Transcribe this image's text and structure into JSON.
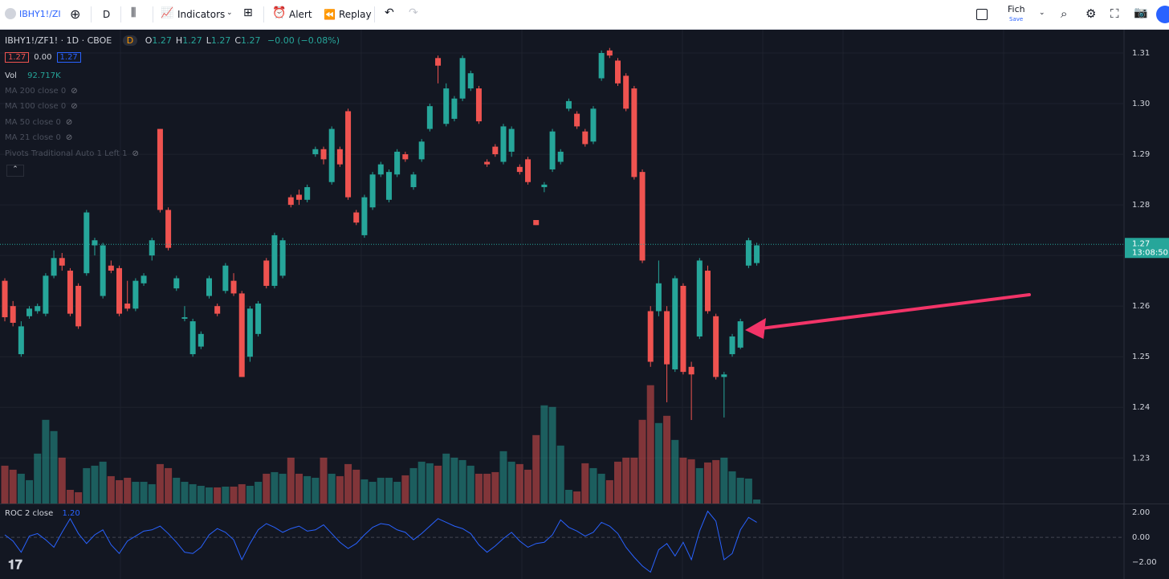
{
  "toolbar": {
    "symbol": "IBHY1!/ZI",
    "interval": "D",
    "indicators": "Indicators",
    "alert": "Alert",
    "replay": "Replay",
    "layout": "Fich",
    "save": "Save"
  },
  "legend": {
    "title": "IBHY1!/ZF1! · 1D · CBOE",
    "badge": "D",
    "ohlc": [
      {
        "label": "O",
        "value": "1.27"
      },
      {
        "label": "H",
        "value": "1.27"
      },
      {
        "label": "L",
        "value": "1.27"
      },
      {
        "label": "C",
        "value": "1.27"
      }
    ],
    "change": "−0.00 (−0.08%)",
    "boxes": [
      "1.27",
      "0.00",
      "1.27"
    ],
    "vol_label": "Vol",
    "vol_value": "92.717K",
    "studies": [
      "MA 200 close 0",
      "MA 100 close 0",
      "MA 50 close 0",
      "MA 21 close 0",
      "Pivots Traditional Auto 1 Left 1"
    ],
    "roc_label": "ROC 2 close",
    "roc_value": "1.20"
  },
  "chart_data": {
    "type": "candlestick",
    "up_color": "#26a69a",
    "down_color": "#ef5350",
    "roc_color": "#2962ff",
    "candles": {
      "open": [
        1.265,
        1.26,
        1.2505,
        1.258,
        1.259,
        1.2585,
        1.266,
        1.2695,
        1.267,
        1.264,
        1.2665,
        1.272,
        1.262,
        1.268,
        1.2675,
        1.2605,
        1.2595,
        1.2645,
        1.27,
        1.295,
        1.279,
        1.2635,
        1.2575,
        1.2505,
        1.252,
        1.262,
        1.26,
        1.263,
        1.265,
        1.2625,
        1.25,
        1.2545,
        1.269,
        1.264,
        1.266,
        1.2815,
        1.282,
        1.281,
        1.29,
        1.291,
        1.2845,
        1.291,
        1.2985,
        1.2785,
        1.274,
        1.2795,
        1.286,
        1.281,
        1.286,
        1.29,
        1.2835,
        1.289,
        1.295,
        1.309,
        1.296,
        1.297,
        1.301,
        1.303,
        1.303,
        1.2885,
        1.2915,
        1.2885,
        1.2905,
        1.2875,
        1.289,
        1.277,
        1.2835,
        1.287,
        1.2885,
        1.299,
        1.298,
        1.2945,
        1.2925,
        1.305,
        1.3105,
        1.3085,
        1.3055,
        1.303,
        1.2865,
        1.259,
        1.259,
        1.259,
        1.2475,
        1.264,
        1.248,
        1.254,
        1.267,
        1.258,
        1.246,
        1.2505,
        1.2518,
        1.268,
        1.2685
      ],
      "high": [
        1.2655,
        1.261,
        1.257,
        1.26,
        1.2605,
        1.2665,
        1.271,
        1.2705,
        1.2675,
        1.2645,
        1.279,
        1.2735,
        1.2725,
        1.269,
        1.268,
        1.265,
        1.2655,
        1.2665,
        1.2735,
        1.295,
        1.2795,
        1.266,
        1.26,
        1.2575,
        1.255,
        1.266,
        1.2605,
        1.2685,
        1.2665,
        1.263,
        1.26,
        1.261,
        1.2695,
        1.2745,
        1.2735,
        1.282,
        1.283,
        1.284,
        1.2915,
        1.2915,
        1.2955,
        1.2915,
        1.299,
        1.279,
        1.282,
        1.2865,
        1.2885,
        1.287,
        1.291,
        1.2905,
        1.2865,
        1.293,
        1.3,
        1.3095,
        1.304,
        1.3015,
        1.3095,
        1.3065,
        1.3035,
        1.289,
        1.292,
        1.296,
        1.2955,
        1.288,
        1.2895,
        1.277,
        1.2845,
        1.295,
        1.291,
        1.301,
        1.2985,
        1.295,
        1.2995,
        1.3105,
        1.311,
        1.309,
        1.306,
        1.3035,
        1.287,
        1.26,
        1.269,
        1.26,
        1.266,
        1.2645,
        1.249,
        1.2695,
        1.268,
        1.2585,
        1.247,
        1.2545,
        1.2575,
        1.2735,
        1.2725
      ],
      "low": [
        1.257,
        1.256,
        1.25,
        1.2575,
        1.2585,
        1.258,
        1.2655,
        1.267,
        1.258,
        1.2555,
        1.266,
        1.27,
        1.2615,
        1.2665,
        1.258,
        1.259,
        1.259,
        1.264,
        1.269,
        1.2785,
        1.271,
        1.263,
        1.257,
        1.25,
        1.2515,
        1.2615,
        1.258,
        1.2625,
        1.262,
        1.246,
        1.249,
        1.254,
        1.2635,
        1.2635,
        1.2655,
        1.2795,
        1.28,
        1.2805,
        1.2895,
        1.288,
        1.284,
        1.2875,
        1.281,
        1.276,
        1.2735,
        1.279,
        1.2855,
        1.2805,
        1.2855,
        1.2885,
        1.283,
        1.2885,
        1.2945,
        1.304,
        1.2955,
        1.2965,
        1.3005,
        1.3025,
        1.296,
        1.2875,
        1.2895,
        1.288,
        1.2895,
        1.286,
        1.284,
        1.276,
        1.2825,
        1.2865,
        1.288,
        1.2985,
        1.295,
        1.2915,
        1.292,
        1.3045,
        1.309,
        1.3035,
        1.2985,
        1.285,
        1.2685,
        1.248,
        1.258,
        1.241,
        1.247,
        1.2465,
        1.2375,
        1.2535,
        1.2585,
        1.2455,
        1.238,
        1.25,
        1.2515,
        1.2675,
        1.268
      ],
      "close": [
        1.2578,
        1.2567,
        1.256,
        1.2595,
        1.26,
        1.266,
        1.2695,
        1.268,
        1.2585,
        1.256,
        1.2785,
        1.273,
        1.272,
        1.267,
        1.2585,
        1.2595,
        1.265,
        1.266,
        1.273,
        1.279,
        1.2715,
        1.2655,
        1.2578,
        1.257,
        1.2545,
        1.2655,
        1.2585,
        1.268,
        1.2625,
        1.246,
        1.2595,
        1.2605,
        1.264,
        1.274,
        1.273,
        1.28,
        1.281,
        1.2835,
        1.291,
        1.289,
        1.295,
        1.288,
        1.2815,
        1.2765,
        1.2815,
        1.286,
        1.288,
        1.2865,
        1.2905,
        1.289,
        1.286,
        1.2925,
        1.2995,
        1.3075,
        1.303,
        1.301,
        1.309,
        1.306,
        1.2965,
        1.288,
        1.29,
        1.2955,
        1.295,
        1.2865,
        1.2845,
        1.276,
        1.284,
        1.2945,
        1.2905,
        1.3005,
        1.2955,
        1.292,
        1.299,
        1.31,
        1.3095,
        1.304,
        1.299,
        1.2855,
        1.269,
        1.249,
        1.2645,
        1.2485,
        1.2655,
        1.247,
        1.2465,
        1.269,
        1.259,
        1.246,
        1.2465,
        1.254,
        1.257,
        1.273,
        1.272
      ]
    },
    "volume": [
      141,
      126,
      111,
      87,
      186,
      312,
      270,
      171,
      51,
      42,
      132,
      141,
      156,
      102,
      87,
      96,
      81,
      81,
      72,
      147,
      132,
      96,
      81,
      72,
      66,
      60,
      60,
      63,
      63,
      72,
      66,
      81,
      111,
      117,
      111,
      171,
      111,
      102,
      96,
      171,
      111,
      102,
      147,
      126,
      90,
      81,
      96,
      96,
      81,
      105,
      132,
      156,
      150,
      141,
      186,
      171,
      162,
      141,
      111,
      111,
      117,
      195,
      156,
      147,
      126,
      255,
      366,
      360,
      216,
      51,
      45,
      150,
      132,
      111,
      87,
      156,
      171,
      171,
      312,
      441,
      300,
      327,
      237,
      171,
      165,
      132,
      153,
      162,
      171,
      120,
      96,
      93,
      15
    ],
    "roc": [
      0.2,
      -0.3,
      -1.2,
      0.1,
      0.3,
      -0.2,
      -0.8,
      0.4,
      1.5,
      0.3,
      -0.5,
      0.2,
      0.6,
      -0.6,
      -1.3,
      -0.3,
      0.1,
      0.5,
      0.6,
      0.9,
      0.3,
      -0.4,
      -1.2,
      -1.3,
      -0.8,
      0.2,
      0.7,
      0.4,
      -0.2,
      -1.8,
      -0.5,
      0.6,
      1.1,
      0.8,
      0.4,
      0.7,
      0.9,
      0.5,
      0.6,
      1.0,
      0.3,
      -0.4,
      -0.9,
      -0.5,
      0.2,
      0.8,
      1.1,
      1.0,
      0.6,
      0.4,
      -0.2,
      0.3,
      0.9,
      1.5,
      1.2,
      0.9,
      0.7,
      0.3,
      -0.6,
      -1.2,
      -0.7,
      -0.1,
      0.4,
      -0.3,
      -0.8,
      -0.5,
      -0.4,
      0.2,
      1.4,
      0.8,
      0.5,
      0.1,
      0.4,
      1.2,
      0.9,
      0.3,
      -0.8,
      -1.6,
      -2.3,
      -2.8,
      -1.0,
      -0.5,
      -1.5,
      -0.4,
      -1.8,
      0.5,
      2.1,
      1.3,
      -1.8,
      -1.3,
      0.6,
      1.6,
      1.2
    ],
    "ylim": [
      1.221,
      1.3146
    ],
    "yticks": [
      1.23,
      1.24,
      1.25,
      1.26,
      1.27,
      1.28,
      1.29,
      {
        "value": 1.3,
        "label": "1.30"
      },
      1.31
    ],
    "vlim": [
      0,
      500
    ],
    "roc_lim": [
      -3.35,
      2.65
    ],
    "roc_ticks": [
      {
        "value": 2,
        "label": "2.00"
      },
      {
        "value": 0,
        "label": "0.00"
      },
      {
        "value": -2,
        "label": "−2.00"
      }
    ],
    "last_price": {
      "value": 1.2722,
      "label": "1.27"
    },
    "countdown": "13:08:50",
    "grid": true
  }
}
